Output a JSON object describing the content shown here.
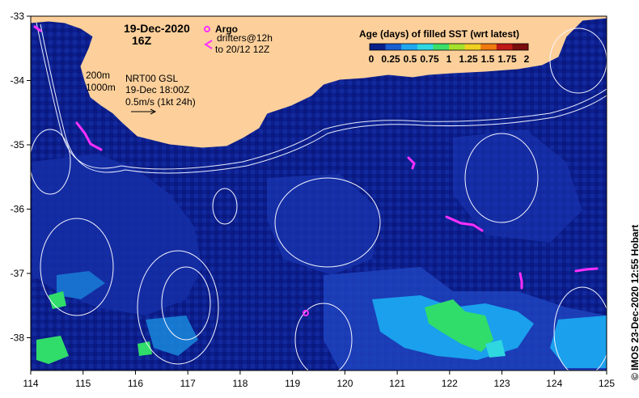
{
  "title": {
    "date": "19-Dec-2020",
    "hour": "16Z"
  },
  "legend": {
    "argo_label": "Argo",
    "drifters_label_1": "drifters@12h",
    "drifters_label_2": "to 20/12 12Z",
    "depth_200": "200m",
    "depth_1000": "1000m",
    "model_line_1": "NRT00 GSL",
    "model_line_2": "19-Dec 18:00Z",
    "vector_scale": "0.5m/s (1kt 24h)"
  },
  "colorbar": {
    "title": "Age (days) of filled SST (wrt latest)",
    "tick_labels": [
      "0",
      "0.25",
      "0.5",
      "0.75",
      "1",
      "1.25",
      "1.5",
      "1.75",
      "2"
    ],
    "colors": [
      "#0a1f8a",
      "#1a5fd0",
      "#1fa8ef",
      "#2fd7e0",
      "#3ddf6a",
      "#a6e12c",
      "#f0d020",
      "#f07a10",
      "#c01818",
      "#7a0d0d"
    ]
  },
  "axes": {
    "x_ticks": [
      "114",
      "115",
      "116",
      "117",
      "118",
      "119",
      "120",
      "121",
      "122",
      "123",
      "124",
      "125"
    ],
    "y_ticks": [
      "-33",
      "-34",
      "-35",
      "-36",
      "-37",
      "-38"
    ]
  },
  "credit": "© IMOS 23-Dec-2020 12:55 Hobart",
  "colors": {
    "land": "#fdd09b",
    "ocean_deep": "#0c1f8e",
    "ocean_mid": "#1f3fb8",
    "age_low": "#1a9be8",
    "age_mid": "#30dc6a",
    "drifter": "#ff2fff",
    "contour": "#e8ecff"
  }
}
